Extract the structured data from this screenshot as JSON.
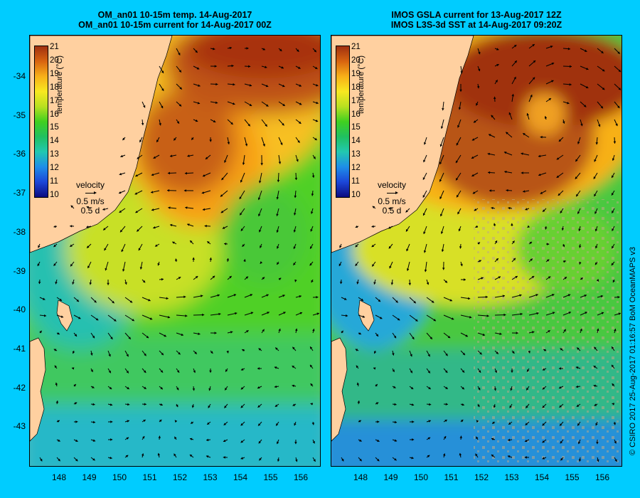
{
  "left_panel": {
    "title_line1": "OM_an01 10-15m temp. 14-Aug-2017",
    "title_line2": "OM_an01 10-15m current for 14-Aug-2017 00Z"
  },
  "right_panel": {
    "title_line1": "IMOS GSLA current for 13-Aug-2017 12Z",
    "title_line2": "IMOS L3S-3d SST at 14-Aug-2017 09:20Z"
  },
  "y_axis_labels": [
    "-34",
    "-35",
    "-36",
    "-37",
    "-38",
    "-39",
    "-40",
    "-41",
    "-42",
    "-43"
  ],
  "x_axis_labels": [
    "148",
    "149",
    "150",
    "151",
    "152",
    "153",
    "154",
    "155",
    "156"
  ],
  "colorbar": {
    "ticks": [
      "21",
      "20",
      "19",
      "18",
      "17",
      "16",
      "15",
      "14",
      "13",
      "12",
      "11",
      "10"
    ],
    "title": "temperature (°C)",
    "range": [
      10,
      21
    ]
  },
  "velocity_key": {
    "label": "velocity",
    "speed": "0.5 m/s",
    "duration": "0.5 d"
  },
  "credit": "© CSIRO 2017   25-Aug-2017 01:16:57 BoM OceanMAPS v3",
  "colors": {
    "background": "#00ccff",
    "land": "#ffd0a0",
    "warm": "#b84a10",
    "cool": "#20c0a0"
  }
}
